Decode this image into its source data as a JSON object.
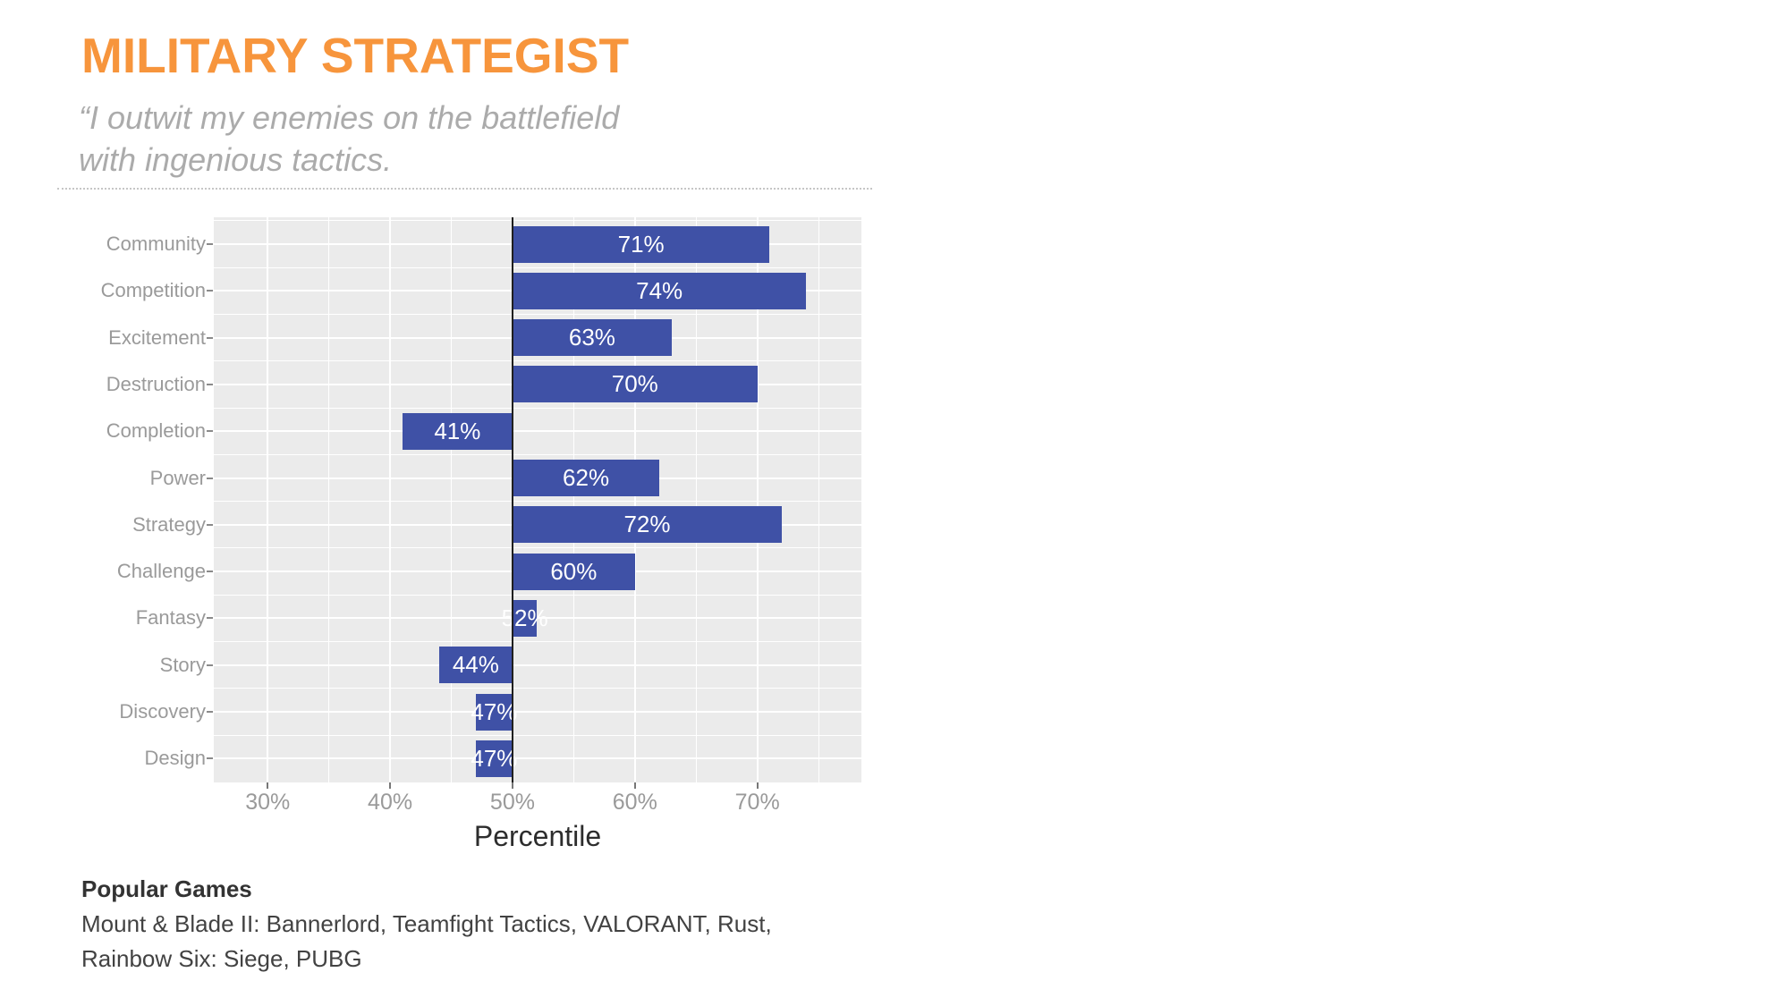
{
  "header": {
    "title": "MILITARY STRATEGIST",
    "title_color": "#F7953C",
    "quote_line1": "“I outwit my enemies on the battlefield",
    "quote_line2": "with ingenious tactics."
  },
  "chart_data": {
    "type": "bar",
    "orientation": "horizontal",
    "title": "",
    "categories": [
      "Community",
      "Competition",
      "Excitement",
      "Destruction",
      "Completion",
      "Power",
      "Strategy",
      "Challenge",
      "Fantasy",
      "Story",
      "Discovery",
      "Design"
    ],
    "values": [
      71,
      74,
      63,
      70,
      41,
      62,
      72,
      60,
      52,
      44,
      47,
      47
    ],
    "value_labels": [
      "71%",
      "74%",
      "63%",
      "70%",
      "41%",
      "62%",
      "72%",
      "60%",
      "52%",
      "44%",
      "47%",
      "47%"
    ],
    "baseline": 50,
    "xlabel": "Percentile",
    "x_ticks": [
      30,
      40,
      50,
      60,
      70
    ],
    "x_tick_labels": [
      "30%",
      "40%",
      "50%",
      "60%",
      "70%"
    ],
    "x_minor_ticks": [
      35,
      45,
      55,
      65,
      75
    ],
    "xlim": [
      25.6,
      78.5
    ],
    "grid": "on",
    "legend": "none",
    "bar_color": "#3F51A6",
    "panel_bg": "#EBEBEB",
    "gridline_color": "#FFFFFF",
    "baseline_color": "#1F1F1F",
    "label_color": "#FFFFFF"
  },
  "footer": {
    "heading": "Popular Games",
    "games_line1": "Mount & Blade II: Bannerlord, Teamfight Tactics, VALORANT, Rust,",
    "games_line2": "Rainbow Six: Siege, PUBG"
  }
}
